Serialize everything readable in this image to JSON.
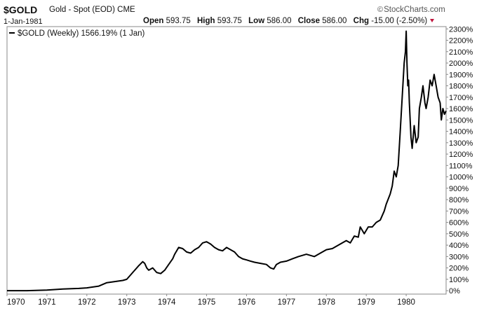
{
  "header": {
    "symbol": "$GOLD",
    "description": "Gold - Spot (EOD) CME",
    "brand": "StockCharts.com",
    "date": "1-Jan-1981",
    "stats": [
      {
        "label": "Open",
        "value": "593.75"
      },
      {
        "label": "High",
        "value": "593.75"
      },
      {
        "label": "Low",
        "value": "586.00"
      },
      {
        "label": "Close",
        "value": "586.00"
      },
      {
        "label": "Chg",
        "value": "-15.00 (-2.50%)"
      }
    ],
    "chg_color": "#c0143c"
  },
  "chart_data": {
    "type": "line",
    "legend": "$GOLD (Weekly) 1566.19% (1 Jan)",
    "legend_placement": "top-left",
    "line_color": "#000000",
    "y_axis_side": "right",
    "xlim": [
      1970.0,
      1981.0
    ],
    "ylim": [
      -30,
      2320
    ],
    "x_ticks": [
      1970,
      1971,
      1972,
      1973,
      1974,
      1975,
      1976,
      1977,
      1978,
      1979,
      1980
    ],
    "x_tick_labels": [
      "1970",
      "1971",
      "1972",
      "1973",
      "1974",
      "1975",
      "1976",
      "1977",
      "1978",
      "1979",
      "1980"
    ],
    "y_ticks": [
      0,
      100,
      200,
      300,
      400,
      500,
      600,
      700,
      800,
      900,
      1000,
      1100,
      1200,
      1300,
      1400,
      1500,
      1600,
      1700,
      1800,
      1900,
      2000,
      2100,
      2200,
      2300
    ],
    "y_tick_labels": [
      "0%",
      "100%",
      "200%",
      "300%",
      "400%",
      "500%",
      "600%",
      "700%",
      "800%",
      "900%",
      "1000%",
      "1100%",
      "1200%",
      "1300%",
      "1400%",
      "1500%",
      "1600%",
      "1700%",
      "1800%",
      "1900%",
      "2000%",
      "2100%",
      "2200%",
      "2300%"
    ],
    "series": [
      {
        "x": [
          1970.0,
          1970.5,
          1971.0,
          1971.4,
          1971.8,
          1972.0,
          1972.3,
          1972.5,
          1972.7,
          1972.9,
          1973.0,
          1973.1,
          1973.2,
          1973.3,
          1973.4,
          1973.45,
          1973.5,
          1973.55,
          1973.65,
          1973.75,
          1973.85,
          1973.95,
          1974.05,
          1974.15,
          1974.2,
          1974.3,
          1974.4,
          1974.5,
          1974.6,
          1974.7,
          1974.8,
          1974.9,
          1975.0,
          1975.1,
          1975.2,
          1975.3,
          1975.4,
          1975.5,
          1975.6,
          1975.7,
          1975.8,
          1975.9,
          1976.0,
          1976.1,
          1976.2,
          1976.35,
          1976.5,
          1976.6,
          1976.68,
          1976.75,
          1976.85,
          1977.0,
          1977.15,
          1977.3,
          1977.5,
          1977.7,
          1977.85,
          1978.0,
          1978.15,
          1978.3,
          1978.5,
          1978.6,
          1978.7,
          1978.8,
          1978.85,
          1978.95,
          1979.05,
          1979.15,
          1979.25,
          1979.35,
          1979.45,
          1979.5,
          1979.6,
          1979.65,
          1979.7,
          1979.75,
          1979.8,
          1979.85,
          1979.9,
          1979.95,
          1979.98,
          1980.0,
          1980.02,
          1980.04,
          1980.06,
          1980.08,
          1980.12,
          1980.15,
          1980.2,
          1980.25,
          1980.3,
          1980.33,
          1980.38,
          1980.42,
          1980.47,
          1980.5,
          1980.55,
          1980.6,
          1980.65,
          1980.7,
          1980.75,
          1980.8,
          1980.85,
          1980.88,
          1980.92,
          1980.96,
          1981.0
        ],
        "y": [
          0,
          0,
          5,
          15,
          20,
          25,
          40,
          70,
          80,
          90,
          100,
          140,
          180,
          220,
          255,
          240,
          200,
          180,
          200,
          160,
          150,
          180,
          230,
          280,
          320,
          380,
          370,
          340,
          330,
          360,
          380,
          420,
          430,
          410,
          380,
          360,
          350,
          380,
          360,
          340,
          300,
          280,
          270,
          260,
          250,
          240,
          230,
          200,
          190,
          230,
          250,
          260,
          280,
          300,
          320,
          300,
          330,
          360,
          370,
          400,
          440,
          420,
          480,
          470,
          560,
          500,
          560,
          560,
          600,
          620,
          700,
          760,
          850,
          920,
          1050,
          1000,
          1100,
          1400,
          1700,
          2000,
          2100,
          2280,
          2000,
          1800,
          1850,
          1650,
          1350,
          1250,
          1450,
          1300,
          1350,
          1600,
          1700,
          1800,
          1650,
          1600,
          1700,
          1850,
          1800,
          1900,
          1800,
          1700,
          1650,
          1500,
          1600,
          1550,
          1580
        ]
      }
    ]
  }
}
